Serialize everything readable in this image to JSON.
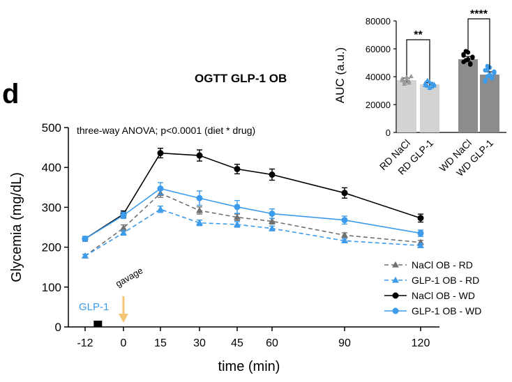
{
  "panel_letter": "d",
  "chart_data": [
    {
      "type": "line",
      "title": "OGTT GLP-1 OB",
      "annotation": "three-way ANOVA; p<0.0001 (diet * drug)",
      "xlabel": "time (min)",
      "ylabel": "Glycemia (mg/dL)",
      "x": [
        -12,
        0,
        15,
        30,
        45,
        60,
        90,
        120
      ],
      "x_tick_labels": [
        "-12",
        "0",
        "15",
        "30",
        "45",
        "60",
        "90",
        "120"
      ],
      "ylim": [
        0,
        500
      ],
      "y_ticks": [
        0,
        100,
        200,
        300,
        400,
        500
      ],
      "y_tick_labels": [
        "0",
        "100",
        "200",
        "300",
        "400",
        "500"
      ],
      "series": [
        {
          "name": "NaCl OB - RD",
          "color": "#707070",
          "marker": "triangle",
          "dashed": true,
          "values": [
            178,
            248,
            335,
            292,
            275,
            265,
            230,
            212
          ],
          "errors": [
            4,
            8,
            10,
            9,
            8,
            7,
            6,
            5
          ]
        },
        {
          "name": "GLP-1 OB - RD",
          "color": "#3c9bea",
          "marker": "triangle",
          "dashed": true,
          "values": [
            178,
            236,
            295,
            261,
            257,
            247,
            216,
            204
          ],
          "errors": [
            4,
            6,
            8,
            7,
            7,
            6,
            5,
            5
          ]
        },
        {
          "name": "NaCl OB - WD",
          "color": "#000000",
          "marker": "circle",
          "dashed": false,
          "values": [
            221,
            283,
            436,
            430,
            396,
            382,
            336,
            273
          ],
          "errors": [
            6,
            8,
            12,
            14,
            12,
            14,
            13,
            10
          ]
        },
        {
          "name": "GLP-1 OB - WD",
          "color": "#3c9bea",
          "marker": "circle",
          "dashed": false,
          "values": [
            221,
            280,
            347,
            323,
            301,
            284,
            268,
            235
          ],
          "errors": [
            6,
            8,
            15,
            18,
            16,
            12,
            10,
            8
          ]
        }
      ],
      "annotations": {
        "drug_label": "GLP-1",
        "drug_time": -8,
        "gavage_label": "gavage",
        "gavage_time": 0
      },
      "legend_position": "bottom-right"
    },
    {
      "type": "bar",
      "ylabel": "AUC (a.u.)",
      "categories": [
        "RD NaCl",
        "RD GLP-1",
        "WD NaCl",
        "WD GLP-1"
      ],
      "values": [
        37500,
        34500,
        52500,
        41500
      ],
      "errors": [
        1500,
        1200,
        2000,
        2000
      ],
      "bar_colors": [
        "#d3d3d3",
        "#d3d3d3",
        "#8c8c8c",
        "#8c8c8c"
      ],
      "point_colors": [
        "#999999",
        "#3c9bea",
        "#000000",
        "#3c9bea"
      ],
      "point_markers": [
        "triangle",
        "triangle",
        "circle",
        "circle"
      ],
      "points": [
        [
          38500,
          36200,
          39800,
          35600,
          40200,
          37400,
          34800,
          38000,
          36800
        ],
        [
          35400,
          33200,
          36200,
          32800,
          34600,
          33800,
          37400,
          31800,
          35000,
          33600
        ],
        [
          55200,
          51800,
          57400,
          49500,
          53600,
          50600,
          58300,
          52400,
          48700,
          54200,
          56100
        ],
        [
          44600,
          40200,
          46600,
          38800,
          42600,
          37400,
          47600,
          41400,
          39600,
          43600,
          36600,
          45000
        ]
      ],
      "ylim": [
        0,
        80000
      ],
      "y_ticks": [
        0,
        20000,
        40000,
        60000,
        80000
      ],
      "y_tick_labels": [
        "0",
        "20000",
        "40000",
        "60000",
        "80000"
      ],
      "significance": [
        {
          "pair": [
            0,
            1
          ],
          "label": "**"
        },
        {
          "pair": [
            2,
            3
          ],
          "label": "****"
        }
      ]
    }
  ]
}
